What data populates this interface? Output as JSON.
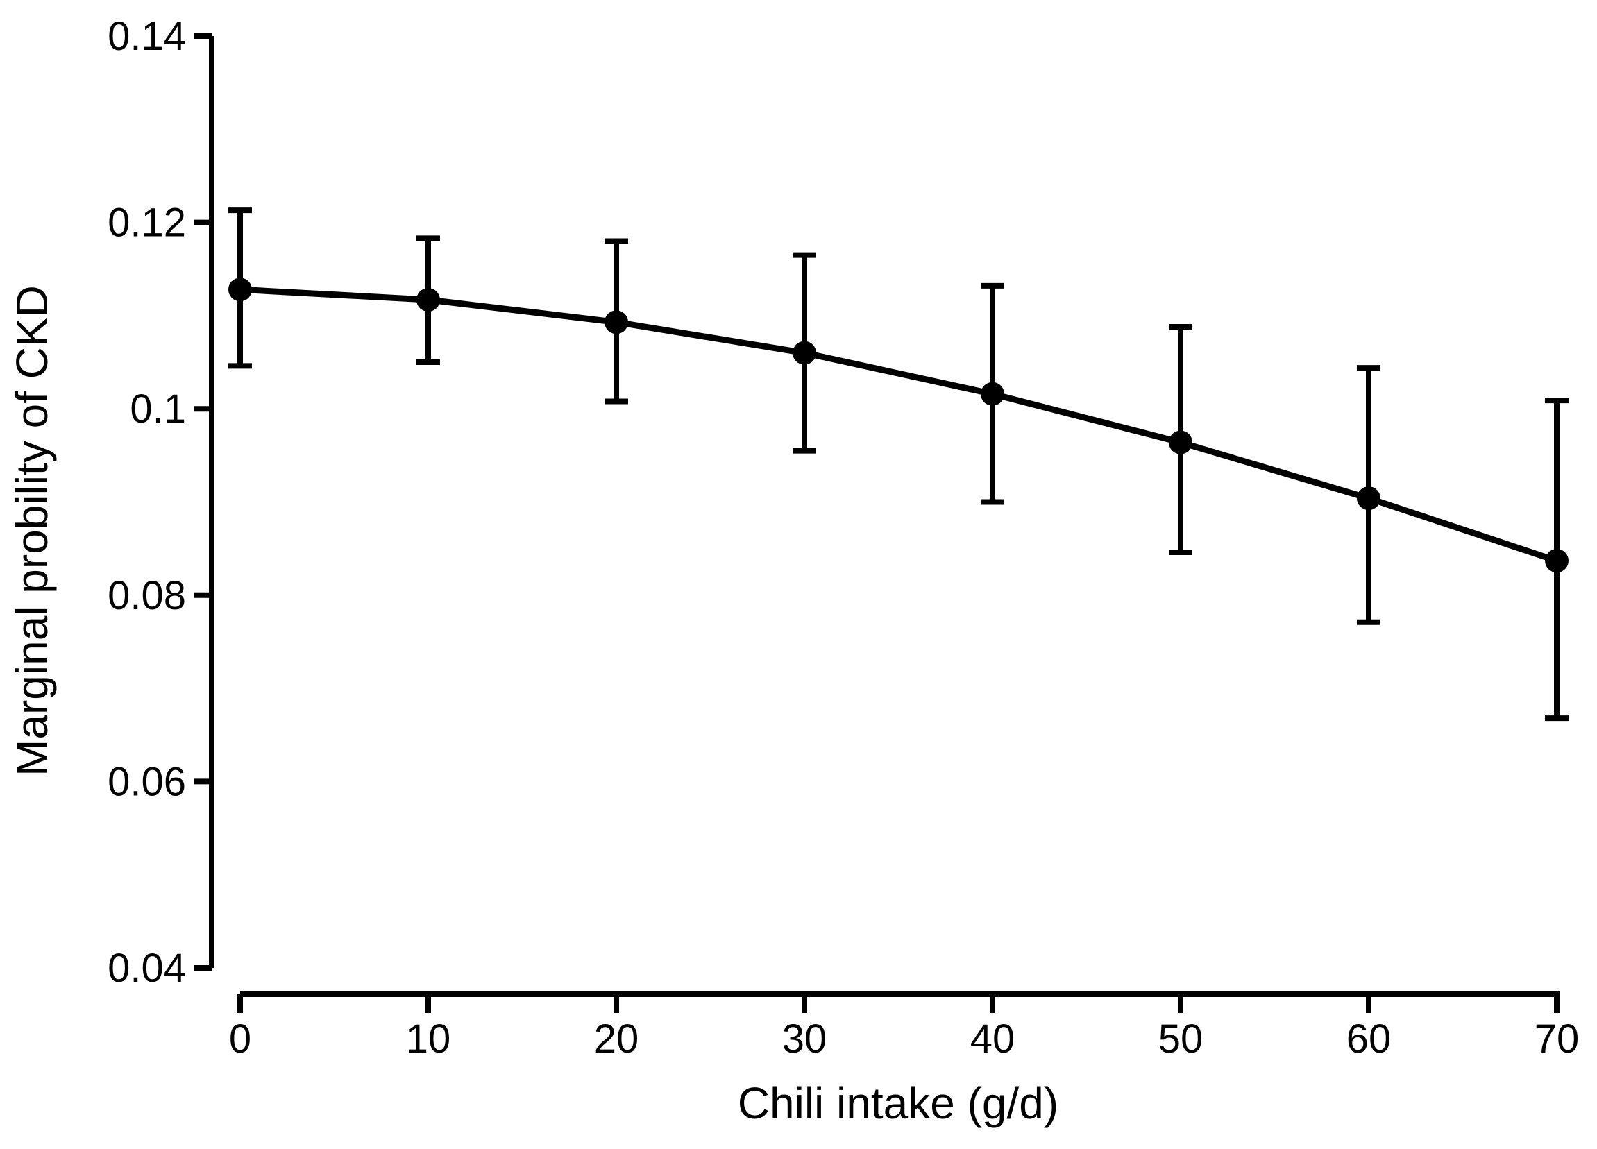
{
  "chart_data": {
    "type": "line",
    "description": "Marginal predicted probability of CKD by chili intake with error bars",
    "x": [
      0,
      10,
      20,
      30,
      40,
      50,
      60,
      70
    ],
    "y": [
      0.1128,
      0.1117,
      0.1093,
      0.106,
      0.1016,
      0.0964,
      0.0904,
      0.0837
    ],
    "ci_lower": [
      0.1046,
      0.105,
      0.1008,
      0.0955,
      0.09,
      0.0846,
      0.0771,
      0.0668
    ],
    "ci_upper": [
      0.1213,
      0.1183,
      0.118,
      0.1165,
      0.1132,
      0.1088,
      0.1044,
      0.1009
    ],
    "xlabel": "Chili intake (g/d)",
    "ylabel": "Marginal probility of CKD",
    "xlim": [
      0,
      70
    ],
    "ylim": [
      0.04,
      0.14
    ],
    "x_ticks": [
      0,
      10,
      20,
      30,
      40,
      50,
      60,
      70
    ],
    "x_tick_labels": [
      "0",
      "10",
      "20",
      "30",
      "40",
      "50",
      "60",
      "70"
    ],
    "y_ticks": [
      0.04,
      0.06,
      0.08,
      0.1,
      0.12,
      0.14
    ],
    "y_tick_labels": [
      "0.04",
      "0.06",
      "0.08",
      "0.1",
      "0.12",
      "0.14"
    ],
    "grid": false,
    "legend": "none",
    "line_color": "#000000",
    "marker": "filled-circle",
    "background_color": "#ffffff"
  }
}
